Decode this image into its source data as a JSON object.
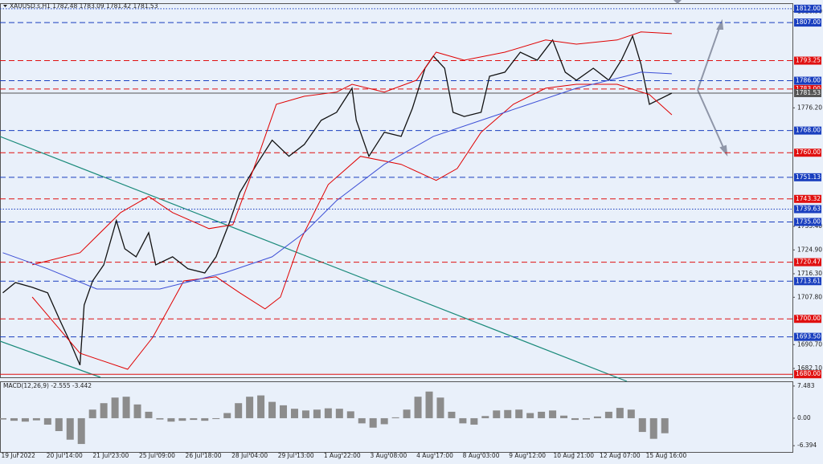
{
  "chart_data": [
    {
      "type": "line",
      "title": "XAUUSD.s,H1  1782.48 1783.09 1781.42 1781.53",
      "xlim": [
        -2,
        563
      ],
      "ylim": [
        1678.9,
        1813.7
      ],
      "xticks": [
        {
          "value": 11,
          "label": "19 Jul 2022"
        },
        {
          "value": 44,
          "label": "20 Jul 14:00"
        },
        {
          "value": 77,
          "label": "21 Jul 23:00"
        },
        {
          "value": 110,
          "label": "25 Jul 09:00"
        },
        {
          "value": 143,
          "label": "26 Jul 18:00"
        },
        {
          "value": 176,
          "label": "28 Jul 04:00"
        },
        {
          "value": 209,
          "label": "29 Jul 13:00"
        },
        {
          "value": 242,
          "label": "1 Aug 22:00"
        },
        {
          "value": 275,
          "label": "3 Aug 08:00"
        },
        {
          "value": 308,
          "label": "4 Aug 17:00"
        },
        {
          "value": 341,
          "label": "8 Aug 03:00"
        },
        {
          "value": 374,
          "label": "9 Aug 12:00"
        },
        {
          "value": 407,
          "label": "10 Aug 21:00"
        },
        {
          "value": 440,
          "label": "12 Aug 07:00"
        },
        {
          "value": 473,
          "label": "15 Aug 16:00"
        }
      ],
      "yticks": [
        {
          "value": 1810.9,
          "label": "1810.90"
        },
        {
          "value": 1776.2,
          "label": "1776.20"
        },
        {
          "value": 1733.4,
          "label": "1733.40"
        },
        {
          "value": 1724.9,
          "label": "1724.90"
        },
        {
          "value": 1716.3,
          "label": "1716.30"
        },
        {
          "value": 1707.8,
          "label": "1707.80"
        },
        {
          "value": 1690.7,
          "label": "1690.70"
        },
        {
          "value": 1682.1,
          "label": "1682.10"
        }
      ],
      "levels": [
        {
          "value": 1812,
          "label": "1812.00",
          "color": "#1a3fbf",
          "style": "dotted"
        },
        {
          "value": 1807,
          "label": "1807.00",
          "color": "#1a3fbf",
          "style": "dashed"
        },
        {
          "value": 1793.25,
          "label": "1793.25",
          "color": "#e01010",
          "style": "dashed"
        },
        {
          "value": 1786,
          "label": "1786.00",
          "color": "#1a3fbf",
          "style": "dashed"
        },
        {
          "value": 1783,
          "label": "1783.00",
          "color": "#e01010",
          "style": "dashed"
        },
        {
          "value": 1781.53,
          "label": "1781.53",
          "color": "#555555",
          "style": "solid"
        },
        {
          "value": 1768,
          "label": "1768.00",
          "color": "#1a3fbf",
          "style": "dashed"
        },
        {
          "value": 1760,
          "label": "1760.00",
          "color": "#e01010",
          "style": "dashed"
        },
        {
          "value": 1751.13,
          "label": "1751.13",
          "color": "#1a3fbf",
          "style": "dashed"
        },
        {
          "value": 1743.32,
          "label": "1743.32",
          "color": "#e01010",
          "style": "dashed"
        },
        {
          "value": 1739.63,
          "label": "1739.63",
          "color": "#1a3fbf",
          "style": "dotted"
        },
        {
          "value": 1735,
          "label": "1735.00",
          "color": "#1a3fbf",
          "style": "dashed"
        },
        {
          "value": 1720.47,
          "label": "1720.47",
          "color": "#e01010",
          "style": "dashed"
        },
        {
          "value": 1713.61,
          "label": "1713.61",
          "color": "#1a3fbf",
          "style": "dashed"
        },
        {
          "value": 1700,
          "label": "1700.00",
          "color": "#e01010",
          "style": "dashed"
        },
        {
          "value": 1693.5,
          "label": "1693.50",
          "color": "#1a3fbf",
          "style": "dashed"
        },
        {
          "value": 1680,
          "label": "1680.00",
          "color": "#e01010",
          "style": "solid"
        }
      ],
      "series": [
        {
          "color": "#111111",
          "x": [
            0,
            9,
            21,
            32,
            41,
            49,
            55,
            58,
            64,
            72,
            81,
            87,
            95,
            104,
            109,
            121,
            132,
            144,
            152,
            161,
            169,
            181,
            192,
            204,
            215,
            227,
            238,
            249,
            252,
            261,
            272,
            284,
            292,
            301,
            307,
            315,
            321,
            329,
            341,
            347,
            358,
            369,
            381,
            392,
            401,
            409,
            421,
            432,
            441,
            449,
            455,
            461,
            467,
            477
          ],
          "values": [
            1709.4,
            1713.1,
            1711.4,
            1709.4,
            1699.2,
            1690.5,
            1683.3,
            1705,
            1713.7,
            1719.5,
            1735.5,
            1725.3,
            1722.4,
            1731.1,
            1719.5,
            1722.4,
            1718.1,
            1716.6,
            1722.4,
            1734,
            1745.6,
            1755.8,
            1764.5,
            1758.7,
            1763,
            1771.7,
            1774.6,
            1783.3,
            1771.7,
            1758.7,
            1767.4,
            1765.9,
            1776,
            1790.5,
            1794.9,
            1790.5,
            1774.6,
            1773.1,
            1774.6,
            1787.6,
            1789.1,
            1796.3,
            1793.4,
            1800.7,
            1789.1,
            1786.2,
            1790.5,
            1786.2,
            1793.4,
            1802.1,
            1792,
            1777.5,
            1779,
            1781.53
          ]
        },
        {
          "color": "#e00000",
          "x": [
            21,
            55,
            84,
            104,
            121,
            147,
            164,
            181,
            195,
            215,
            238,
            249,
            272,
            295,
            309,
            329,
            358,
            387,
            409,
            438,
            455,
            477
          ],
          "values": [
            1719.5,
            1723.9,
            1738.4,
            1744.2,
            1738.4,
            1732.6,
            1734,
            1757.2,
            1777.5,
            1780.4,
            1781.9,
            1784.7,
            1781.9,
            1786.2,
            1796.3,
            1793.4,
            1796.3,
            1800.7,
            1799.2,
            1800.7,
            1803.6,
            1803
          ]
        },
        {
          "color": "#e00000",
          "x": [
            21,
            55,
            89,
            107,
            129,
            152,
            169,
            187,
            198,
            212,
            232,
            255,
            284,
            309,
            324,
            341,
            364,
            387,
            409,
            438,
            461,
            477
          ],
          "values": [
            1707.9,
            1687.6,
            1681.8,
            1693.4,
            1713.7,
            1715.2,
            1709.4,
            1703.6,
            1707.9,
            1728.2,
            1748.5,
            1758.7,
            1755.8,
            1750,
            1754.3,
            1767.4,
            1777.5,
            1783.3,
            1784.7,
            1784.7,
            1781,
            1773.7
          ]
        },
        {
          "color": "#3d4fd6",
          "x": [
            0,
            32,
            67,
            112,
            158,
            192,
            215,
            238,
            272,
            307,
            341,
            375,
            409,
            444,
            455,
            477
          ],
          "values": [
            1723.9,
            1718.1,
            1710.8,
            1710.8,
            1716.6,
            1722.4,
            1731.1,
            1742.7,
            1755.8,
            1765.9,
            1771.7,
            1777.5,
            1783.3,
            1787.6,
            1789.1,
            1788.5
          ]
        }
      ]
    },
    {
      "type": "bar",
      "title": "MACD(12,26,9) -2.555 -3.442",
      "color": "#8c8c8c",
      "ylim": [
        -7.855,
        8.396
      ],
      "yticks": [
        {
          "value": 7.483,
          "label": "7.483"
        },
        {
          "value": 0,
          "label": "0.00"
        },
        {
          "value": -6.394,
          "label": "-6.394"
        }
      ],
      "x": [
        0,
        8,
        16,
        24,
        32,
        40,
        48,
        56,
        64,
        72,
        80,
        88,
        96,
        104,
        112,
        120,
        128,
        136,
        144,
        152,
        160,
        168,
        176,
        184,
        192,
        200,
        208,
        216,
        224,
        232,
        240,
        248,
        256,
        264,
        272,
        280,
        288,
        296,
        304,
        312,
        320,
        328,
        336,
        344,
        352,
        360,
        368,
        376,
        384,
        392,
        400,
        408,
        416,
        424,
        432,
        440,
        448,
        456,
        464,
        472
      ],
      "values": [
        -0.3,
        -0.6,
        -0.8,
        -0.5,
        -1.5,
        -3.0,
        -5.0,
        -6.0,
        2.0,
        3.5,
        4.8,
        5.0,
        3.2,
        1.5,
        -0.3,
        -0.8,
        -0.6,
        -0.4,
        -0.6,
        -0.2,
        1.2,
        3.5,
        5.0,
        5.3,
        3.8,
        3.0,
        2.2,
        1.8,
        2.0,
        2.3,
        2.2,
        1.6,
        -1.2,
        -2.2,
        -1.4,
        0.2,
        2.0,
        5.0,
        6.2,
        4.8,
        1.5,
        -1.2,
        -1.5,
        0.5,
        1.8,
        1.9,
        2.0,
        1.2,
        1.5,
        1.8,
        0.6,
        -0.4,
        -0.3,
        0.4,
        1.5,
        2.4,
        2.0,
        -3.2,
        -4.8,
        -3.5
      ]
    }
  ]
}
